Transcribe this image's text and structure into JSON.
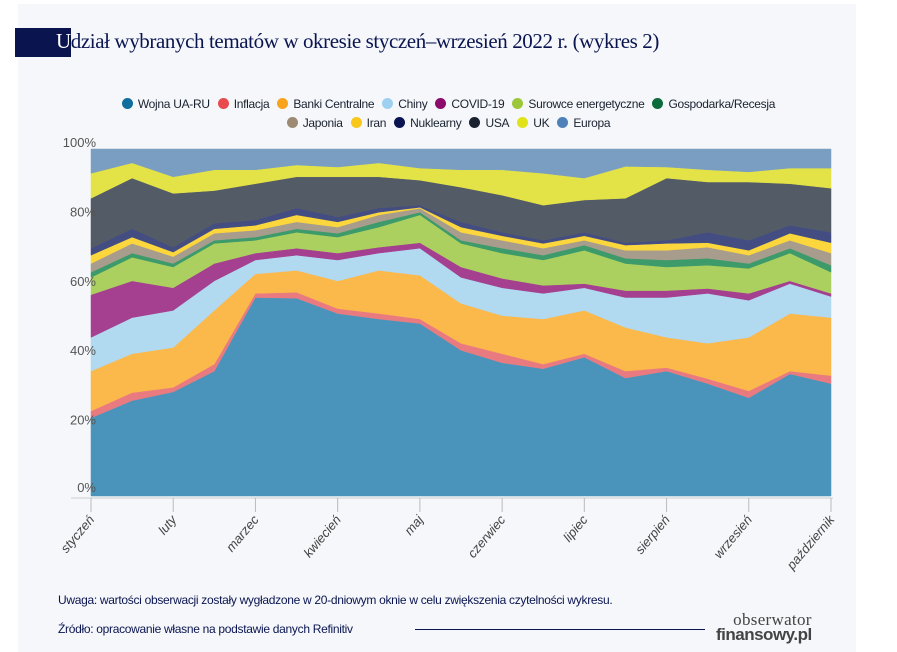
{
  "title": {
    "first_letter": "U",
    "rest": "dział wybranych tematów w okresie styczeń–wrzesień 2022 r. (wykres 2)"
  },
  "chart_data": {
    "type": "area",
    "stacked": "percent",
    "title": "Udział wybranych tematów w okresie styczeń–wrzesień 2022 r. (wykres 2)",
    "xlabel": "",
    "ylabel": "",
    "ylim": [
      0,
      100
    ],
    "legend_position": "top-center",
    "y_ticks": [
      "0%",
      "20%",
      "40%",
      "60%",
      "80%",
      "100%"
    ],
    "x_ticks": [
      "styczeń",
      "luty",
      "marzec",
      "kwiecień",
      "maj",
      "czerwiec",
      "lipiec",
      "sierpień",
      "wrzesień",
      "październik"
    ],
    "x": [
      0,
      0.5,
      1,
      1.5,
      2,
      2.5,
      3,
      3.5,
      4,
      4.5,
      5,
      5.5,
      6,
      6.5,
      7,
      7.5,
      8,
      8.5,
      9
    ],
    "series": [
      {
        "name": "Wojna UA-RU",
        "color": "#4a94bb",
        "legend_color": "#0e6e9e",
        "values": [
          22.5,
          27.5,
          30,
          36,
          57.2,
          57,
          52.6,
          51,
          49.7,
          42,
          38.4,
          36.7,
          40,
          34,
          36,
          32.4,
          28.3,
          35.2,
          32.4
        ]
      },
      {
        "name": "Inflacja",
        "color": "#e97b80",
        "legend_color": "#e84a4e",
        "values": [
          2,
          2.3,
          1.3,
          2,
          1.2,
          1.7,
          1.4,
          1.6,
          1.3,
          2,
          2.6,
          1.3,
          1,
          2,
          1,
          1.4,
          2,
          0.8,
          2.3
        ]
      },
      {
        "name": "Banki Centralne",
        "color": "#fbb84b",
        "legend_color": "#f9a31a",
        "values": [
          11.5,
          11.2,
          11.5,
          15.5,
          5.6,
          6.3,
          8,
          12.4,
          12.6,
          11.5,
          11,
          13,
          12.5,
          12.6,
          8.7,
          10.2,
          15.4,
          16.6,
          16.7
        ]
      },
      {
        "name": "Chiny",
        "color": "#b1d9f0",
        "legend_color": "#9ed1ef",
        "values": [
          9.7,
          10.4,
          10.7,
          8.5,
          4,
          4.4,
          6,
          5,
          7.8,
          7.5,
          8,
          7.4,
          6.5,
          8.6,
          11.5,
          14.4,
          10.7,
          8.6,
          6.1
        ]
      },
      {
        "name": "COVID-19",
        "color": "#a4408f",
        "legend_color": "#8b0c6b",
        "values": [
          12.3,
          10.6,
          6.5,
          5,
          2,
          2,
          2,
          1.7,
          1.6,
          3,
          2.7,
          2.3,
          1.2,
          2,
          2,
          1.4,
          2,
          0.8,
          0.9
        ]
      },
      {
        "name": "Surowce energetyczne",
        "color": "#acd05f",
        "legend_color": "#9dc73a",
        "values": [
          5,
          6.8,
          6,
          5.8,
          3.7,
          4.6,
          4.6,
          5.8,
          8,
          6.8,
          7.3,
          7.3,
          9.6,
          7.8,
          6.8,
          6.7,
          7.2,
          8,
          6.1
        ]
      },
      {
        "name": "Gospodarka/Recesja",
        "color": "#3d9a6a",
        "legend_color": "#0b6b3a",
        "values": [
          1.5,
          1.2,
          1,
          0.9,
          0.9,
          1,
          1.1,
          1.5,
          0.8,
          0.9,
          1.4,
          1.4,
          1.5,
          1.5,
          2,
          2,
          1.4,
          1.4,
          2
        ]
      },
      {
        "name": "Japonia",
        "color": "#a89d8c",
        "legend_color": "#9c8a72",
        "values": [
          2.5,
          2.8,
          2,
          2,
          2,
          2,
          1.8,
          2,
          1.1,
          2.3,
          2.3,
          2,
          1.4,
          2.3,
          2.8,
          3.2,
          2.4,
          2.3,
          3.5
        ]
      },
      {
        "name": "Iran",
        "color": "#fbd63c",
        "legend_color": "#f8c71a",
        "values": [
          2.4,
          1.8,
          1.3,
          1.3,
          1.4,
          2,
          1.5,
          0.8,
          0.3,
          1.5,
          1.3,
          1.4,
          1.3,
          1.5,
          2,
          1.3,
          1.4,
          2,
          3
        ]
      },
      {
        "name": "Nuklearny",
        "color": "#434d82",
        "legend_color": "#0a1450",
        "values": [
          2,
          2.4,
          1.4,
          1.6,
          1.5,
          2,
          1.4,
          1.2,
          0.6,
          1.5,
          1,
          0.9,
          1,
          0.7,
          0.9,
          3,
          2.9,
          2.3,
          3
        ]
      },
      {
        "name": "USA",
        "color": "#535b66",
        "legend_color": "#1a2230",
        "values": [
          14.4,
          14.6,
          15.5,
          9.4,
          10.5,
          9,
          11.6,
          9,
          7.2,
          10,
          10.7,
          10.1,
          9.3,
          12.8,
          17.9,
          14.5,
          16.8,
          12,
          12.7
        ]
      },
      {
        "name": "UK",
        "color": "#e3e347",
        "legend_color": "#e0e21a",
        "values": [
          7.2,
          4.4,
          4.8,
          6,
          4,
          3.4,
          2.8,
          4,
          3.5,
          5,
          7.3,
          9.2,
          6.3,
          9.2,
          3.2,
          3.5,
          2.9,
          4.5,
          5.8
        ]
      },
      {
        "name": "Europa",
        "color": "#7a9ec2",
        "legend_color": "#4f81b9",
        "values": [
          7,
          4,
          8,
          6,
          6,
          4.6,
          5.2,
          4,
          5.5,
          6,
          6,
          7,
          8.4,
          5,
          5.2,
          6,
          6.6,
          5.5,
          5.5
        ]
      }
    ]
  },
  "footer": {
    "note": "Uwaga: wartości obserwacji zostały wygładzone w 20-dniowym oknie w celu zwiększenia czytelności wykresu.",
    "source": "Źródło: opracowanie własne na podstawie danych Refinitiv",
    "logo_line1": "obserwator",
    "logo_line2": "finansowy.pl"
  }
}
